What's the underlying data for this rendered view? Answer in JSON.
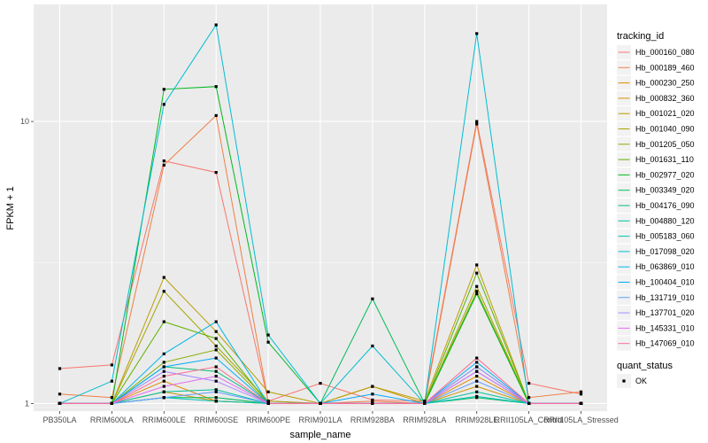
{
  "chart_data": {
    "type": "line",
    "xlabel": "sample_name",
    "ylabel": "FPKM + 1",
    "y_scale": "log10",
    "ylim": [
      0.94,
      26
    ],
    "y_ticks": [
      1,
      10
    ],
    "categories": [
      "PB350LA",
      "RRIM600LA",
      "RRIM600LE",
      "RRIM600SE",
      "RRIM600PE",
      "RRIM901LA",
      "RRIM928BA",
      "RRIM928LA",
      "RRIM928LE",
      "RRII105LA_Control",
      "RRII105LA_Stressed"
    ],
    "legend_title": "tracking_id",
    "legend_position": "right",
    "series": [
      {
        "name": "Hb_000160_080",
        "color": "#F8766D",
        "values": [
          1.33,
          1.37,
          7.25,
          6.6,
          1.02,
          1.18,
          1.03,
          1.02,
          10.0,
          1.18,
          1.08
        ]
      },
      {
        "name": "Hb_000189_460",
        "color": "#EE8043",
        "values": [
          1.08,
          1.05,
          7.0,
          10.5,
          1.02,
          1.0,
          1.02,
          1.0,
          9.8,
          1.05,
          1.1
        ]
      },
      {
        "name": "Hb_000230_250",
        "color": "#E08B00",
        "values": [
          1.0,
          1.0,
          1.2,
          1.02,
          1.0,
          1.0,
          1.0,
          1.0,
          1.25,
          1.0,
          1.0
        ]
      },
      {
        "name": "Hb_000832_360",
        "color": "#CF9400",
        "values": [
          1.0,
          1.0,
          1.1,
          1.02,
          1.0,
          1.0,
          1.15,
          1.0,
          1.15,
          1.0,
          1.0
        ]
      },
      {
        "name": "Hb_001021_020",
        "color": "#BB9D00",
        "values": [
          1.0,
          1.0,
          2.8,
          1.8,
          1.1,
          1.0,
          1.15,
          1.02,
          3.1,
          1.0,
          1.0
        ]
      },
      {
        "name": "Hb_001040_090",
        "color": "#A3A500",
        "values": [
          1.0,
          1.0,
          2.5,
          1.6,
          1.02,
          1.0,
          1.0,
          1.0,
          2.6,
          1.0,
          1.0
        ]
      },
      {
        "name": "Hb_001205_050",
        "color": "#85AD00",
        "values": [
          1.0,
          1.0,
          1.4,
          1.55,
          1.0,
          1.0,
          1.0,
          1.0,
          2.5,
          1.0,
          1.0
        ]
      },
      {
        "name": "Hb_001631_110",
        "color": "#5BB300",
        "values": [
          1.0,
          1.0,
          1.95,
          1.7,
          1.0,
          1.0,
          1.0,
          1.0,
          2.9,
          1.0,
          1.0
        ]
      },
      {
        "name": "Hb_002977_020",
        "color": "#00B81F",
        "values": [
          1.0,
          1.0,
          13.0,
          13.3,
          1.65,
          1.0,
          1.0,
          1.0,
          2.45,
          1.0,
          1.0
        ]
      },
      {
        "name": "Hb_003349_020",
        "color": "#00BC59",
        "values": [
          1.0,
          1.0,
          1.05,
          1.05,
          1.0,
          1.0,
          2.35,
          1.0,
          1.05,
          1.0,
          1.0
        ]
      },
      {
        "name": "Hb_004176_090",
        "color": "#00BF7D",
        "values": [
          1.0,
          1.0,
          1.35,
          1.3,
          1.0,
          1.0,
          1.0,
          1.0,
          1.35,
          1.0,
          1.0
        ]
      },
      {
        "name": "Hb_004880_120",
        "color": "#00C19C",
        "values": [
          1.0,
          1.0,
          1.1,
          1.12,
          1.0,
          1.0,
          1.0,
          1.0,
          1.1,
          1.0,
          1.0
        ]
      },
      {
        "name": "Hb_005183_060",
        "color": "#00C1B8",
        "values": [
          1.0,
          1.0,
          1.05,
          1.02,
          1.0,
          1.0,
          1.0,
          1.0,
          1.06,
          1.0,
          1.0
        ]
      },
      {
        "name": "Hb_017098_020",
        "color": "#00BDD1",
        "values": [
          1.0,
          1.2,
          11.5,
          22.0,
          1.75,
          1.0,
          1.6,
          1.0,
          20.5,
          1.0,
          1.0
        ]
      },
      {
        "name": "Hb_063869_010",
        "color": "#00B6E7",
        "values": [
          1.0,
          1.0,
          1.5,
          1.95,
          1.0,
          1.0,
          1.0,
          1.0,
          1.3,
          1.0,
          1.0
        ]
      },
      {
        "name": "Hb_100404_010",
        "color": "#00ABFA",
        "values": [
          1.0,
          1.0,
          1.35,
          1.45,
          1.0,
          1.0,
          1.08,
          1.0,
          1.4,
          1.0,
          1.0
        ]
      },
      {
        "name": "Hb_131719_010",
        "color": "#619CFF",
        "values": [
          1.0,
          1.0,
          1.05,
          1.1,
          1.0,
          1.0,
          1.0,
          1.0,
          1.2,
          1.0,
          1.0
        ]
      },
      {
        "name": "Hb_137701_020",
        "color": "#A58AFF",
        "values": [
          1.0,
          1.0,
          1.3,
          1.2,
          1.0,
          1.0,
          1.0,
          1.0,
          1.35,
          1.0,
          1.0
        ]
      },
      {
        "name": "Hb_145331_010",
        "color": "#E76BF3",
        "values": [
          1.0,
          1.0,
          1.15,
          1.25,
          1.0,
          1.0,
          1.0,
          1.0,
          1.3,
          1.0,
          1.0
        ]
      },
      {
        "name": "Hb_147069_010",
        "color": "#FF6C91",
        "values": [
          1.0,
          1.0,
          1.25,
          1.35,
          1.0,
          1.0,
          1.0,
          1.0,
          1.45,
          1.0,
          1.0
        ]
      }
    ],
    "shape_legend_title": "quant_status",
    "shape_legend_items": [
      "OK"
    ]
  }
}
